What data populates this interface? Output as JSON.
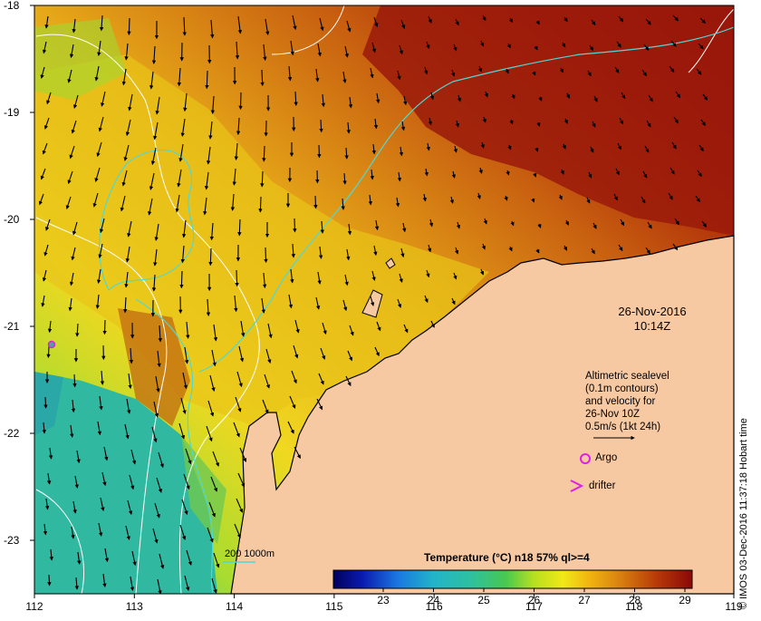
{
  "map": {
    "lon_ticks": [
      "112",
      "113",
      "114",
      "115",
      "116",
      "117",
      "118",
      "119"
    ],
    "lat_ticks": [
      "-18",
      "-19",
      "-20",
      "-21",
      "-22",
      "-23"
    ],
    "land_color": "#f7c9a2",
    "date": "26-Nov-2016",
    "time": "10:14Z",
    "credit": "© IMOS 03-Dec-2016 11:37:18 Hobart time",
    "isobath_label": "200  1000m"
  },
  "legend": {
    "lines": [
      "Altimetric sealevel",
      "(0.1m contours)",
      "and velocity for",
      "26-Nov 10Z",
      "0.5m/s (1kt 24h)"
    ],
    "argo_label": "Argo",
    "drifter_label": "drifter",
    "argo_color": "#e020e0"
  },
  "colorbar": {
    "title": "Temperature (°C) n18 57% ql>=4",
    "ticks": [
      "23",
      "24",
      "25",
      "26",
      "27",
      "28",
      "29"
    ]
  }
}
